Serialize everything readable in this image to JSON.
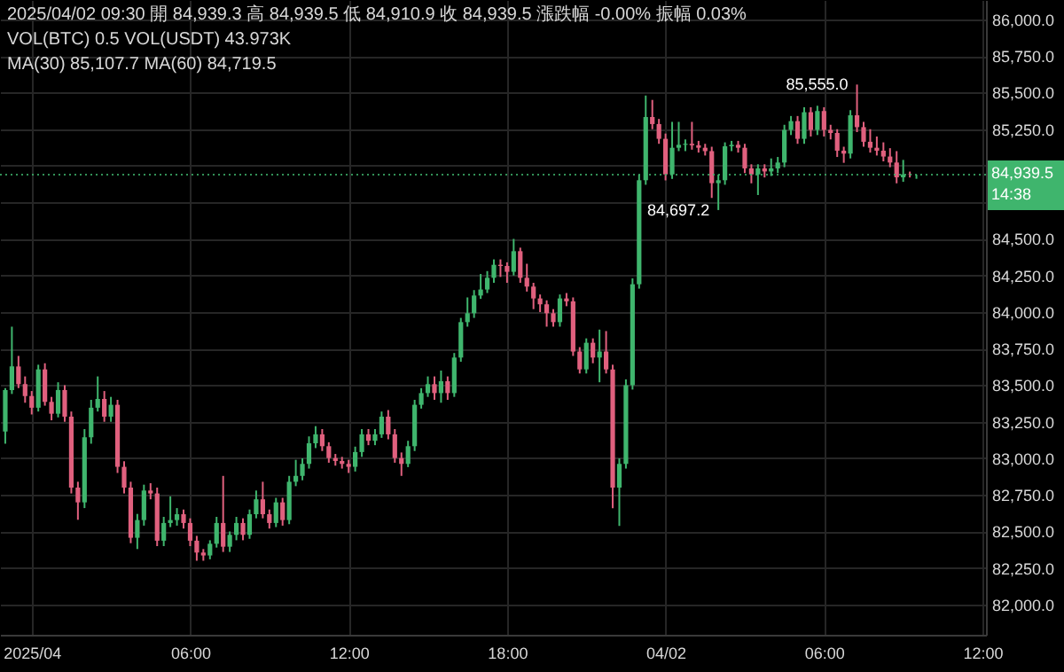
{
  "chart_data": {
    "type": "candlestick",
    "annotations": [
      "2025/04/02 09:30 開 84,939.3 高 84,939.5 低 84,910.9 收 84,939.5 漲跌幅 -0.00% 振幅 0.03%",
      "VOL(BTC) 0.5 VOL(USDT) 43.973K",
      "MA(30) 85,107.7 MA(60) 84,719.5",
      {
        "text": "85,555.0",
        "x": "2025-04-02T07:15",
        "y": 85555
      },
      {
        "text": "84,697.2",
        "x": "2025-04-02T02:00",
        "y": 84697.2
      }
    ],
    "x": [
      "2025-03-31T23:00",
      "2025-03-31T23:15",
      "2025-03-31T23:30",
      "2025-03-31T23:45",
      "2025-04-01T00:00",
      "2025-04-01T00:15",
      "2025-04-01T00:30",
      "2025-04-01T00:45",
      "2025-04-01T01:00",
      "2025-04-01T01:15",
      "2025-04-01T01:30",
      "2025-04-01T01:45",
      "2025-04-01T02:00",
      "2025-04-01T02:15",
      "2025-04-01T02:30",
      "2025-04-01T02:45",
      "2025-04-01T03:00",
      "2025-04-01T03:15",
      "2025-04-01T03:30",
      "2025-04-01T03:45",
      "2025-04-01T04:00",
      "2025-04-01T04:15",
      "2025-04-01T04:30",
      "2025-04-01T04:45",
      "2025-04-01T05:00",
      "2025-04-01T05:15",
      "2025-04-01T05:30",
      "2025-04-01T05:45",
      "2025-04-01T06:00",
      "2025-04-01T06:15",
      "2025-04-01T06:30",
      "2025-04-01T06:45",
      "2025-04-01T07:00",
      "2025-04-01T07:15",
      "2025-04-01T07:30",
      "2025-04-01T07:45",
      "2025-04-01T08:00",
      "2025-04-01T08:15",
      "2025-04-01T08:30",
      "2025-04-01T08:45",
      "2025-04-01T09:00",
      "2025-04-01T09:15",
      "2025-04-01T09:30",
      "2025-04-01T09:45",
      "2025-04-01T10:00",
      "2025-04-01T10:15",
      "2025-04-01T10:30",
      "2025-04-01T10:45",
      "2025-04-01T11:00",
      "2025-04-01T11:15",
      "2025-04-01T11:30",
      "2025-04-01T11:45",
      "2025-04-01T12:00",
      "2025-04-01T12:15",
      "2025-04-01T12:30",
      "2025-04-01T12:45",
      "2025-04-01T13:00",
      "2025-04-01T13:15",
      "2025-04-01T13:30",
      "2025-04-01T13:45",
      "2025-04-01T14:00",
      "2025-04-01T14:15",
      "2025-04-01T14:30",
      "2025-04-01T14:45",
      "2025-04-01T15:00",
      "2025-04-01T15:15",
      "2025-04-01T15:30",
      "2025-04-01T15:45",
      "2025-04-01T16:00",
      "2025-04-01T16:15",
      "2025-04-01T16:30",
      "2025-04-01T16:45",
      "2025-04-01T17:00",
      "2025-04-01T17:15",
      "2025-04-01T17:30",
      "2025-04-01T17:45",
      "2025-04-01T18:00",
      "2025-04-01T18:15",
      "2025-04-01T18:30",
      "2025-04-01T18:45",
      "2025-04-01T19:00",
      "2025-04-01T19:15",
      "2025-04-01T19:30",
      "2025-04-01T19:45",
      "2025-04-01T20:00",
      "2025-04-01T20:15",
      "2025-04-01T20:30",
      "2025-04-01T20:45",
      "2025-04-01T21:00",
      "2025-04-01T21:15",
      "2025-04-01T21:30",
      "2025-04-01T21:45",
      "2025-04-01T22:00",
      "2025-04-01T22:15",
      "2025-04-01T22:30",
      "2025-04-01T22:45",
      "2025-04-01T23:00",
      "2025-04-01T23:15",
      "2025-04-01T23:30",
      "2025-04-01T23:45",
      "2025-04-02T00:00",
      "2025-04-02T00:15",
      "2025-04-02T00:30",
      "2025-04-02T00:45",
      "2025-04-02T01:00",
      "2025-04-02T01:15",
      "2025-04-02T01:30",
      "2025-04-02T01:45",
      "2025-04-02T02:00",
      "2025-04-02T02:15",
      "2025-04-02T02:30",
      "2025-04-02T02:45",
      "2025-04-02T03:00",
      "2025-04-02T03:15",
      "2025-04-02T03:30",
      "2025-04-02T03:45",
      "2025-04-02T04:00",
      "2025-04-02T04:15",
      "2025-04-02T04:30",
      "2025-04-02T04:45",
      "2025-04-02T05:00",
      "2025-04-02T05:15",
      "2025-04-02T05:30",
      "2025-04-02T05:45",
      "2025-04-02T06:00",
      "2025-04-02T06:15",
      "2025-04-02T06:30",
      "2025-04-02T06:45",
      "2025-04-02T07:00",
      "2025-04-02T07:15",
      "2025-04-02T07:30",
      "2025-04-02T07:45",
      "2025-04-02T08:00",
      "2025-04-02T08:15",
      "2025-04-02T08:30",
      "2025-04-02T08:45",
      "2025-04-02T09:00",
      "2025-04-02T09:15",
      "2025-04-02T09:30"
    ],
    "ohlc": [
      [
        83184,
        83480,
        83100,
        83467
      ],
      [
        83467,
        83900,
        83440,
        83628
      ],
      [
        83628,
        83700,
        83480,
        83507
      ],
      [
        83507,
        83560,
        83380,
        83426
      ],
      [
        83426,
        83460,
        83300,
        83346
      ],
      [
        83346,
        83640,
        83320,
        83608
      ],
      [
        83608,
        83650,
        83360,
        83386
      ],
      [
        83386,
        83420,
        83260,
        83305
      ],
      [
        83305,
        83520,
        83280,
        83467
      ],
      [
        83467,
        83500,
        83250,
        83285
      ],
      [
        83285,
        83320,
        82760,
        82800
      ],
      [
        82800,
        82840,
        82580,
        82699
      ],
      [
        82699,
        83200,
        82660,
        83144
      ],
      [
        83144,
        83400,
        83100,
        83346
      ],
      [
        83346,
        83560,
        83320,
        83406
      ],
      [
        83406,
        83460,
        83250,
        83285
      ],
      [
        83285,
        83420,
        83250,
        83366
      ],
      [
        83366,
        83400,
        82900,
        82942
      ],
      [
        82942,
        82980,
        82760,
        82800
      ],
      [
        82800,
        82840,
        82420,
        82457
      ],
      [
        82457,
        82620,
        82380,
        82578
      ],
      [
        82578,
        82820,
        82540,
        82780
      ],
      [
        82780,
        82830,
        82720,
        82760
      ],
      [
        82760,
        82800,
        82400,
        82437
      ],
      [
        82437,
        82600,
        82400,
        82558
      ],
      [
        82558,
        82740,
        82530,
        82578
      ],
      [
        82578,
        82660,
        82540,
        82618
      ],
      [
        82618,
        82650,
        82520,
        82558
      ],
      [
        82558,
        82590,
        82400,
        82437
      ],
      [
        82437,
        82470,
        82300,
        82356
      ],
      [
        82356,
        82380,
        82300,
        82336
      ],
      [
        82336,
        82440,
        82310,
        82416
      ],
      [
        82416,
        82600,
        82390,
        82558
      ],
      [
        82558,
        82880,
        82360,
        82396
      ],
      [
        82396,
        82500,
        82360,
        82477
      ],
      [
        82477,
        82600,
        82440,
        82558
      ],
      [
        82558,
        82590,
        82440,
        82477
      ],
      [
        82477,
        82650,
        82450,
        82618
      ],
      [
        82618,
        82780,
        82590,
        82720
      ],
      [
        82720,
        82840,
        82590,
        82618
      ],
      [
        82618,
        82650,
        82520,
        82558
      ],
      [
        82558,
        82730,
        82530,
        82699
      ],
      [
        82699,
        82730,
        82540,
        82578
      ],
      [
        82578,
        82880,
        82550,
        82840
      ],
      [
        82840,
        82990,
        82810,
        82880
      ],
      [
        82880,
        83000,
        82850,
        82962
      ],
      [
        82962,
        83150,
        82930,
        83103
      ],
      [
        83103,
        83220,
        83070,
        83164
      ],
      [
        83164,
        83200,
        83050,
        83083
      ],
      [
        83083,
        83110,
        82970,
        83002
      ],
      [
        83002,
        83030,
        82950,
        82982
      ],
      [
        82982,
        83010,
        82930,
        82962
      ],
      [
        82962,
        82990,
        82900,
        82942
      ],
      [
        82942,
        83080,
        82910,
        83043
      ],
      [
        83043,
        83200,
        83010,
        83164
      ],
      [
        83164,
        83200,
        83090,
        83120
      ],
      [
        83120,
        83200,
        83090,
        83164
      ],
      [
        83164,
        83320,
        83140,
        83285
      ],
      [
        83285,
        83330,
        83130,
        83164
      ],
      [
        83164,
        83200,
        82970,
        83002
      ],
      [
        83002,
        83040,
        82880,
        82962
      ],
      [
        82962,
        83120,
        82940,
        83083
      ],
      [
        83083,
        83400,
        83050,
        83366
      ],
      [
        83366,
        83480,
        83340,
        83446
      ],
      [
        83446,
        83560,
        83420,
        83507
      ],
      [
        83507,
        83560,
        83400,
        83446
      ],
      [
        83446,
        83600,
        83380,
        83527
      ],
      [
        83527,
        83560,
        83400,
        83446
      ],
      [
        83446,
        83720,
        83420,
        83689
      ],
      [
        83689,
        83960,
        83660,
        83931
      ],
      [
        83931,
        84100,
        83900,
        83992
      ],
      [
        83992,
        84150,
        83960,
        84113
      ],
      [
        84113,
        84260,
        84090,
        84154
      ],
      [
        84154,
        84280,
        84130,
        84234
      ],
      [
        84234,
        84360,
        84200,
        84323
      ],
      [
        84323,
        84360,
        84240,
        84315
      ],
      [
        84315,
        84340,
        84200,
        84275
      ],
      [
        84275,
        84500,
        84250,
        84416
      ],
      [
        84416,
        84440,
        84200,
        84234
      ],
      [
        84234,
        84330,
        84140,
        84174
      ],
      [
        84174,
        84200,
        84020,
        84093
      ],
      [
        84093,
        84120,
        84000,
        84053
      ],
      [
        84053,
        84080,
        83900,
        83992
      ],
      [
        83992,
        84020,
        83900,
        83931
      ],
      [
        83931,
        84120,
        83900,
        84093
      ],
      [
        84093,
        84130,
        84040,
        84073
      ],
      [
        84073,
        84100,
        83700,
        83730
      ],
      [
        83730,
        83760,
        83580,
        83608
      ],
      [
        83608,
        83820,
        83580,
        83790
      ],
      [
        83790,
        83820,
        83650,
        83689
      ],
      [
        83689,
        83880,
        83520,
        83730
      ],
      [
        83730,
        83870,
        83580,
        83608
      ],
      [
        83608,
        83640,
        82659,
        82800
      ],
      [
        82800,
        83000,
        82538,
        82962
      ],
      [
        82962,
        83540,
        82930,
        83500
      ],
      [
        83500,
        84230,
        83470,
        84190
      ],
      [
        84190,
        84940,
        84160,
        84901
      ],
      [
        84901,
        85480,
        84870,
        85333
      ],
      [
        85333,
        85450,
        85250,
        85285
      ],
      [
        85285,
        85320,
        85150,
        85184
      ],
      [
        85184,
        85220,
        84900,
        84941
      ],
      [
        84941,
        85300,
        84910,
        85123
      ],
      [
        85123,
        85300,
        85100,
        85143
      ],
      [
        85143,
        85180,
        85100,
        85150
      ],
      [
        85150,
        85300,
        85110,
        85140
      ],
      [
        85140,
        85170,
        85090,
        85123
      ],
      [
        85123,
        85150,
        85070,
        85100
      ],
      [
        85100,
        85130,
        84780,
        84881
      ],
      [
        84881,
        84940,
        84697.2,
        84901
      ],
      [
        84901,
        85160,
        84870,
        85133
      ],
      [
        85133,
        85170,
        85100,
        85143
      ],
      [
        85143,
        85170,
        85090,
        85123
      ],
      [
        85123,
        85150,
        84950,
        84982
      ],
      [
        84982,
        85010,
        84880,
        84941
      ],
      [
        84941,
        85010,
        84800,
        84982
      ],
      [
        84982,
        85010,
        84920,
        84961
      ],
      [
        84961,
        85050,
        84930,
        84982
      ],
      [
        84982,
        85060,
        84950,
        85022
      ],
      [
        85022,
        85280,
        84990,
        85245
      ],
      [
        85245,
        85340,
        85210,
        85305
      ],
      [
        85305,
        85340,
        85150,
        85184
      ],
      [
        85184,
        85400,
        85150,
        85366
      ],
      [
        85366,
        85400,
        85200,
        85245
      ],
      [
        85245,
        85410,
        85210,
        85374
      ],
      [
        85374,
        85400,
        85200,
        85245
      ],
      [
        85245,
        85280,
        85180,
        85224
      ],
      [
        85224,
        85250,
        85060,
        85103
      ],
      [
        85103,
        85130,
        85020,
        85083
      ],
      [
        85083,
        85380,
        85050,
        85345
      ],
      [
        85345,
        85555,
        85230,
        85264
      ],
      [
        85264,
        85300,
        85130,
        85164
      ],
      [
        85164,
        85250,
        85090,
        85123
      ],
      [
        85123,
        85200,
        85070,
        85103
      ],
      [
        85103,
        85160,
        85030,
        85063
      ],
      [
        85063,
        85120,
        84990,
        85022
      ],
      [
        85022,
        85100,
        84880,
        84921
      ],
      [
        84921,
        85040,
        84890,
        84941
      ],
      [
        84941,
        84960,
        84920,
        84939.3
      ],
      [
        84939.3,
        84939.5,
        84910.9,
        84939.5
      ]
    ],
    "colors": [
      "#3fb56d",
      "#3fb56d",
      "#e0607e",
      "#e0607e",
      "#e0607e",
      "#3fb56d",
      "#e0607e",
      "#e0607e",
      "#3fb56d",
      "#e0607e",
      "#e0607e",
      "#e0607e",
      "#3fb56d",
      "#3fb56d",
      "#3fb56d",
      "#e0607e",
      "#3fb56d",
      "#e0607e",
      "#e0607e",
      "#e0607e",
      "#3fb56d",
      "#3fb56d",
      "#e0607e",
      "#e0607e",
      "#3fb56d",
      "#3fb56d",
      "#3fb56d",
      "#e0607e",
      "#e0607e",
      "#e0607e",
      "#e0607e",
      "#3fb56d",
      "#3fb56d",
      "#e0607e",
      "#3fb56d",
      "#3fb56d",
      "#e0607e",
      "#3fb56d",
      "#3fb56d",
      "#e0607e",
      "#e0607e",
      "#3fb56d",
      "#e0607e",
      "#3fb56d",
      "#3fb56d",
      "#3fb56d",
      "#3fb56d",
      "#3fb56d",
      "#e0607e",
      "#e0607e",
      "#e0607e",
      "#e0607e",
      "#e0607e",
      "#3fb56d",
      "#3fb56d",
      "#e0607e",
      "#3fb56d",
      "#3fb56d",
      "#e0607e",
      "#e0607e",
      "#e0607e",
      "#3fb56d",
      "#3fb56d",
      "#3fb56d",
      "#3fb56d",
      "#e0607e",
      "#3fb56d",
      "#e0607e",
      "#3fb56d",
      "#3fb56d",
      "#3fb56d",
      "#3fb56d",
      "#3fb56d",
      "#3fb56d",
      "#3fb56d",
      "#e0607e",
      "#e0607e",
      "#3fb56d",
      "#e0607e",
      "#e0607e",
      "#e0607e",
      "#e0607e",
      "#e0607e",
      "#e0607e",
      "#3fb56d",
      "#e0607e",
      "#e0607e",
      "#e0607e",
      "#3fb56d",
      "#e0607e",
      "#3fb56d",
      "#e0607e",
      "#e0607e",
      "#3fb56d",
      "#3fb56d",
      "#3fb56d",
      "#3fb56d",
      "#3fb56d",
      "#e0607e",
      "#e0607e",
      "#e0607e",
      "#3fb56d",
      "#3fb56d",
      "#3fb56d",
      "#e0607e",
      "#e0607e",
      "#e0607e",
      "#e0607e",
      "#3fb56d",
      "#3fb56d",
      "#3fb56d",
      "#e0607e",
      "#e0607e",
      "#e0607e",
      "#3fb56d",
      "#e0607e",
      "#3fb56d",
      "#3fb56d",
      "#3fb56d",
      "#3fb56d",
      "#e0607e",
      "#3fb56d",
      "#e0607e",
      "#3fb56d",
      "#e0607e",
      "#e0607e",
      "#e0607e",
      "#e0607e",
      "#3fb56d",
      "#e0607e",
      "#e0607e",
      "#e0607e",
      "#e0607e",
      "#e0607e",
      "#e0607e",
      "#e0607e",
      "#3fb56d",
      "#e0607e",
      "#3fb56d"
    ],
    "xlim": [
      "2025-03-31T22:48",
      "2025-04-02T12:08"
    ],
    "xticks": [
      {
        "value": "2025-04-01T00:00",
        "label": "2025/04"
      },
      {
        "value": "2025-04-01T06:00",
        "label": "06:00"
      },
      {
        "value": "2025-04-01T12:00",
        "label": "12:00"
      },
      {
        "value": "2025-04-01T18:00",
        "label": "18:00"
      },
      {
        "value": "2025-04-02T00:00",
        "label": "04/02"
      },
      {
        "value": "2025-04-02T06:00",
        "label": "06:00"
      },
      {
        "value": "2025-04-02T12:00",
        "label": "12:00"
      }
    ],
    "ylim": [
      81794,
      86133
    ],
    "yticks": [
      {
        "value": 82000,
        "label": "82,000.0"
      },
      {
        "value": 82250,
        "label": "82,250.0"
      },
      {
        "value": 82500,
        "label": "82,500.0"
      },
      {
        "value": 82750,
        "label": "82,750.0"
      },
      {
        "value": 83000,
        "label": "83,000.0"
      },
      {
        "value": 83250,
        "label": "83,250.0"
      },
      {
        "value": 83500,
        "label": "83,500.0"
      },
      {
        "value": 83750,
        "label": "83,750.0"
      },
      {
        "value": 84000,
        "label": "84,000.0"
      },
      {
        "value": 84250,
        "label": "84,250.0"
      },
      {
        "value": 84500,
        "label": "84,500.0"
      },
      {
        "value": 84750,
        "label": null
      },
      {
        "value": 85000,
        "label": null
      },
      {
        "value": 85250,
        "label": "85,250.0"
      },
      {
        "value": 85500,
        "label": "85,500.0"
      },
      {
        "value": 85750,
        "label": "85,750.0"
      },
      {
        "value": 86000,
        "label": "86,000.0"
      }
    ],
    "ref_lines": [
      {
        "axis": "y",
        "value": 84939.5,
        "label": "84,939.5\n14:38",
        "color": "#3fb56d",
        "line_style": "dotted"
      }
    ],
    "grid": true
  }
}
